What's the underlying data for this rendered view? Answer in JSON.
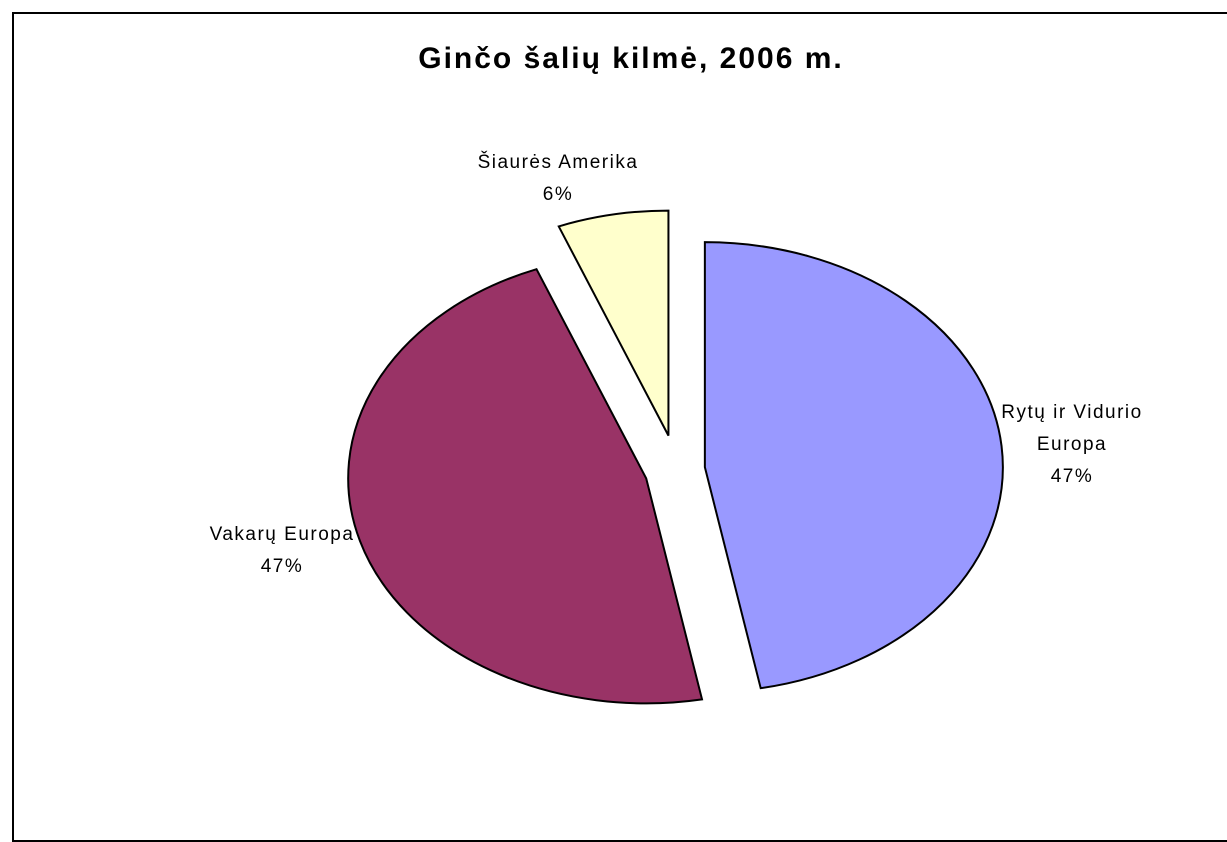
{
  "chart_data": {
    "type": "pie",
    "title": "Ginčo šalių kilmė, 2006 m.",
    "slices": [
      {
        "label_lines": [
          "Rytų ir Vidurio",
          "Europa"
        ],
        "value": 47,
        "value_label": "47%",
        "color": "#9999ff"
      },
      {
        "label_lines": [
          "Vakarų Europa"
        ],
        "value": 47,
        "value_label": "47%",
        "color": "#993366"
      },
      {
        "label_lines": [
          "Šiaurės Amerika"
        ],
        "value": 6,
        "value_label": "6%",
        "color": "#ffffcc"
      }
    ],
    "exploded": true,
    "legend": "none"
  }
}
